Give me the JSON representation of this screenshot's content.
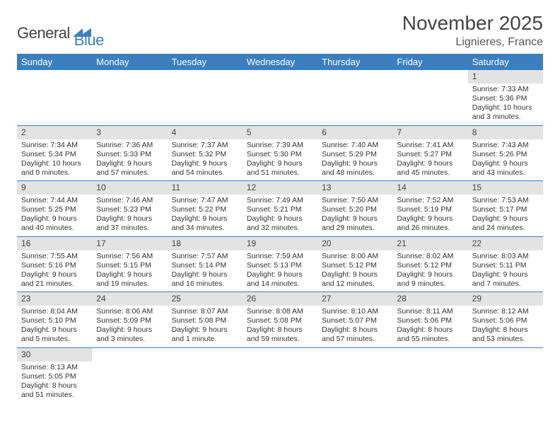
{
  "brand": {
    "name1": "General",
    "name2": "Blue"
  },
  "title": {
    "month": "November 2025",
    "location": "Lignieres, France"
  },
  "colors": {
    "accent": "#3b7fbf",
    "header_text": "#ffffff",
    "daybar": "#e3e3e3",
    "text": "#333333",
    "bg": "#ffffff"
  },
  "typography": {
    "month_fontsize": 28,
    "location_fontsize": 16,
    "dayheader_fontsize": 13,
    "cell_fontsize": 10.5
  },
  "calendar": {
    "type": "table",
    "columns": [
      "Sunday",
      "Monday",
      "Tuesday",
      "Wednesday",
      "Thursday",
      "Friday",
      "Saturday"
    ],
    "weeks": [
      [
        null,
        null,
        null,
        null,
        null,
        null,
        {
          "n": "1",
          "sr": "7:33 AM",
          "ss": "5:36 PM",
          "dl": "10 hours and 3 minutes."
        }
      ],
      [
        {
          "n": "2",
          "sr": "7:34 AM",
          "ss": "5:34 PM",
          "dl": "10 hours and 0 minutes."
        },
        {
          "n": "3",
          "sr": "7:36 AM",
          "ss": "5:33 PM",
          "dl": "9 hours and 57 minutes."
        },
        {
          "n": "4",
          "sr": "7:37 AM",
          "ss": "5:32 PM",
          "dl": "9 hours and 54 minutes."
        },
        {
          "n": "5",
          "sr": "7:39 AM",
          "ss": "5:30 PM",
          "dl": "9 hours and 51 minutes."
        },
        {
          "n": "6",
          "sr": "7:40 AM",
          "ss": "5:29 PM",
          "dl": "9 hours and 48 minutes."
        },
        {
          "n": "7",
          "sr": "7:41 AM",
          "ss": "5:27 PM",
          "dl": "9 hours and 45 minutes."
        },
        {
          "n": "8",
          "sr": "7:43 AM",
          "ss": "5:26 PM",
          "dl": "9 hours and 43 minutes."
        }
      ],
      [
        {
          "n": "9",
          "sr": "7:44 AM",
          "ss": "5:25 PM",
          "dl": "9 hours and 40 minutes."
        },
        {
          "n": "10",
          "sr": "7:46 AM",
          "ss": "5:23 PM",
          "dl": "9 hours and 37 minutes."
        },
        {
          "n": "11",
          "sr": "7:47 AM",
          "ss": "5:22 PM",
          "dl": "9 hours and 34 minutes."
        },
        {
          "n": "12",
          "sr": "7:49 AM",
          "ss": "5:21 PM",
          "dl": "9 hours and 32 minutes."
        },
        {
          "n": "13",
          "sr": "7:50 AM",
          "ss": "5:20 PM",
          "dl": "9 hours and 29 minutes."
        },
        {
          "n": "14",
          "sr": "7:52 AM",
          "ss": "5:19 PM",
          "dl": "9 hours and 26 minutes."
        },
        {
          "n": "15",
          "sr": "7:53 AM",
          "ss": "5:17 PM",
          "dl": "9 hours and 24 minutes."
        }
      ],
      [
        {
          "n": "16",
          "sr": "7:55 AM",
          "ss": "5:16 PM",
          "dl": "9 hours and 21 minutes."
        },
        {
          "n": "17",
          "sr": "7:56 AM",
          "ss": "5:15 PM",
          "dl": "9 hours and 19 minutes."
        },
        {
          "n": "18",
          "sr": "7:57 AM",
          "ss": "5:14 PM",
          "dl": "9 hours and 16 minutes."
        },
        {
          "n": "19",
          "sr": "7:59 AM",
          "ss": "5:13 PM",
          "dl": "9 hours and 14 minutes."
        },
        {
          "n": "20",
          "sr": "8:00 AM",
          "ss": "5:12 PM",
          "dl": "9 hours and 12 minutes."
        },
        {
          "n": "21",
          "sr": "8:02 AM",
          "ss": "5:12 PM",
          "dl": "9 hours and 9 minutes."
        },
        {
          "n": "22",
          "sr": "8:03 AM",
          "ss": "5:11 PM",
          "dl": "9 hours and 7 minutes."
        }
      ],
      [
        {
          "n": "23",
          "sr": "8:04 AM",
          "ss": "5:10 PM",
          "dl": "9 hours and 5 minutes."
        },
        {
          "n": "24",
          "sr": "8:06 AM",
          "ss": "5:09 PM",
          "dl": "9 hours and 3 minutes."
        },
        {
          "n": "25",
          "sr": "8:07 AM",
          "ss": "5:08 PM",
          "dl": "9 hours and 1 minute."
        },
        {
          "n": "26",
          "sr": "8:08 AM",
          "ss": "5:08 PM",
          "dl": "8 hours and 59 minutes."
        },
        {
          "n": "27",
          "sr": "8:10 AM",
          "ss": "5:07 PM",
          "dl": "8 hours and 57 minutes."
        },
        {
          "n": "28",
          "sr": "8:11 AM",
          "ss": "5:06 PM",
          "dl": "8 hours and 55 minutes."
        },
        {
          "n": "29",
          "sr": "8:12 AM",
          "ss": "5:06 PM",
          "dl": "8 hours and 53 minutes."
        }
      ],
      [
        {
          "n": "30",
          "sr": "8:13 AM",
          "ss": "5:05 PM",
          "dl": "8 hours and 51 minutes."
        },
        null,
        null,
        null,
        null,
        null,
        null
      ]
    ],
    "labels": {
      "sunrise": "Sunrise:",
      "sunset": "Sunset:",
      "daylight": "Daylight:"
    }
  }
}
